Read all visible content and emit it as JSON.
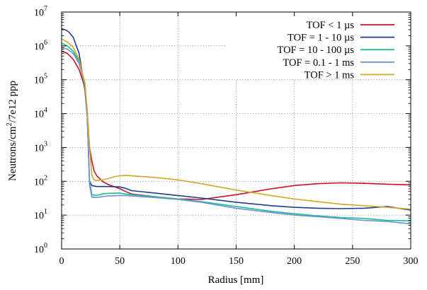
{
  "chart_data": {
    "type": "line",
    "xlabel": "Radius [mm]",
    "ylabel_parts": [
      "Neutrons/cm",
      "2",
      "/7e12 ppp"
    ],
    "xlim": [
      0,
      300
    ],
    "ylim": [
      1,
      10000000
    ],
    "yscale": "log",
    "grid": "dotted",
    "legend_position": "top-right",
    "x_ticks": [
      {
        "value": 0,
        "label": "0"
      },
      {
        "value": 50,
        "label": "50"
      },
      {
        "value": 100,
        "label": "100"
      },
      {
        "value": 150,
        "label": "150"
      },
      {
        "value": 200,
        "label": "200"
      },
      {
        "value": 250,
        "label": "250"
      },
      {
        "value": 300,
        "label": "300"
      }
    ],
    "y_ticks": [
      {
        "value": 1,
        "base": "10",
        "exp": "0"
      },
      {
        "value": 10,
        "base": "10",
        "exp": "1"
      },
      {
        "value": 100,
        "base": "10",
        "exp": "2"
      },
      {
        "value": 1000,
        "base": "10",
        "exp": "3"
      },
      {
        "value": 10000,
        "base": "10",
        "exp": "4"
      },
      {
        "value": 100000,
        "base": "10",
        "exp": "5"
      },
      {
        "value": 1000000,
        "base": "10",
        "exp": "6"
      },
      {
        "value": 10000000,
        "base": "10",
        "exp": "7"
      }
    ],
    "series": [
      {
        "name": "TOF < 1 µs",
        "color": "#c8102e",
        "x": [
          0,
          5,
          10,
          15,
          20,
          22,
          24,
          26,
          28,
          30,
          35,
          40,
          45,
          50,
          55,
          60,
          80,
          100,
          120,
          150,
          180,
          200,
          220,
          240,
          260,
          280,
          300
        ],
        "y": [
          700000,
          600000,
          400000,
          200000,
          60000,
          12000,
          1000,
          400,
          200,
          150,
          100,
          80,
          70,
          60,
          50,
          42,
          35,
          30,
          29,
          40,
          60,
          75,
          85,
          90,
          87,
          82,
          78
        ]
      },
      {
        "name": "TOF = 1 - 10 µs",
        "color": "#1f3a93",
        "x": [
          0,
          3,
          6,
          10,
          15,
          20,
          22,
          24,
          26,
          30,
          40,
          50,
          55,
          60,
          80,
          100,
          120,
          150,
          180,
          200,
          220,
          240,
          260,
          280,
          300
        ],
        "y": [
          3200000,
          3000000,
          2600000,
          1800000,
          600000,
          50000,
          8000,
          100,
          75,
          70,
          70,
          68,
          62,
          53,
          45,
          38,
          32,
          24,
          19,
          17,
          16,
          15.5,
          16,
          18,
          14
        ]
      },
      {
        "name": "TOF = 10 - 100 µs",
        "color": "#19c28a",
        "x": [
          0,
          5,
          10,
          15,
          20,
          22,
          24,
          26,
          30,
          35,
          40,
          50,
          55,
          60,
          80,
          100,
          120,
          150,
          180,
          200,
          220,
          240,
          260,
          280,
          300
        ],
        "y": [
          1200000,
          1000000,
          700000,
          350000,
          80000,
          10000,
          100,
          40,
          38,
          42,
          44,
          45,
          42,
          40,
          35,
          30,
          25,
          18,
          13,
          11,
          9.5,
          8.5,
          8,
          7,
          6.8
        ]
      },
      {
        "name": "TOF = 0.1 - 1 ms",
        "color": "#6f8fd8",
        "x": [
          0,
          5,
          10,
          15,
          20,
          22,
          24,
          26,
          30,
          35,
          40,
          50,
          55,
          60,
          80,
          100,
          120,
          150,
          180,
          200,
          220,
          240,
          260,
          280,
          300
        ],
        "y": [
          900000,
          800000,
          600000,
          300000,
          70000,
          9000,
          80,
          34,
          33,
          35,
          37,
          38,
          38,
          37,
          33,
          29,
          24,
          16,
          12,
          10,
          9,
          8,
          7,
          6.5,
          5.5
        ]
      },
      {
        "name": "TOF > 1 ms",
        "color": "#d4a52a",
        "x": [
          0,
          5,
          10,
          15,
          20,
          22,
          24,
          26,
          28,
          30,
          35,
          40,
          45,
          50,
          55,
          60,
          80,
          100,
          120,
          150,
          180,
          200,
          220,
          240,
          260,
          280,
          300
        ],
        "y": [
          1600000,
          1300000,
          900000,
          400000,
          70000,
          12000,
          1000,
          150,
          110,
          105,
          110,
          120,
          135,
          145,
          150,
          145,
          130,
          110,
          85,
          55,
          38,
          30,
          25,
          21,
          19,
          17,
          15
        ]
      }
    ]
  }
}
